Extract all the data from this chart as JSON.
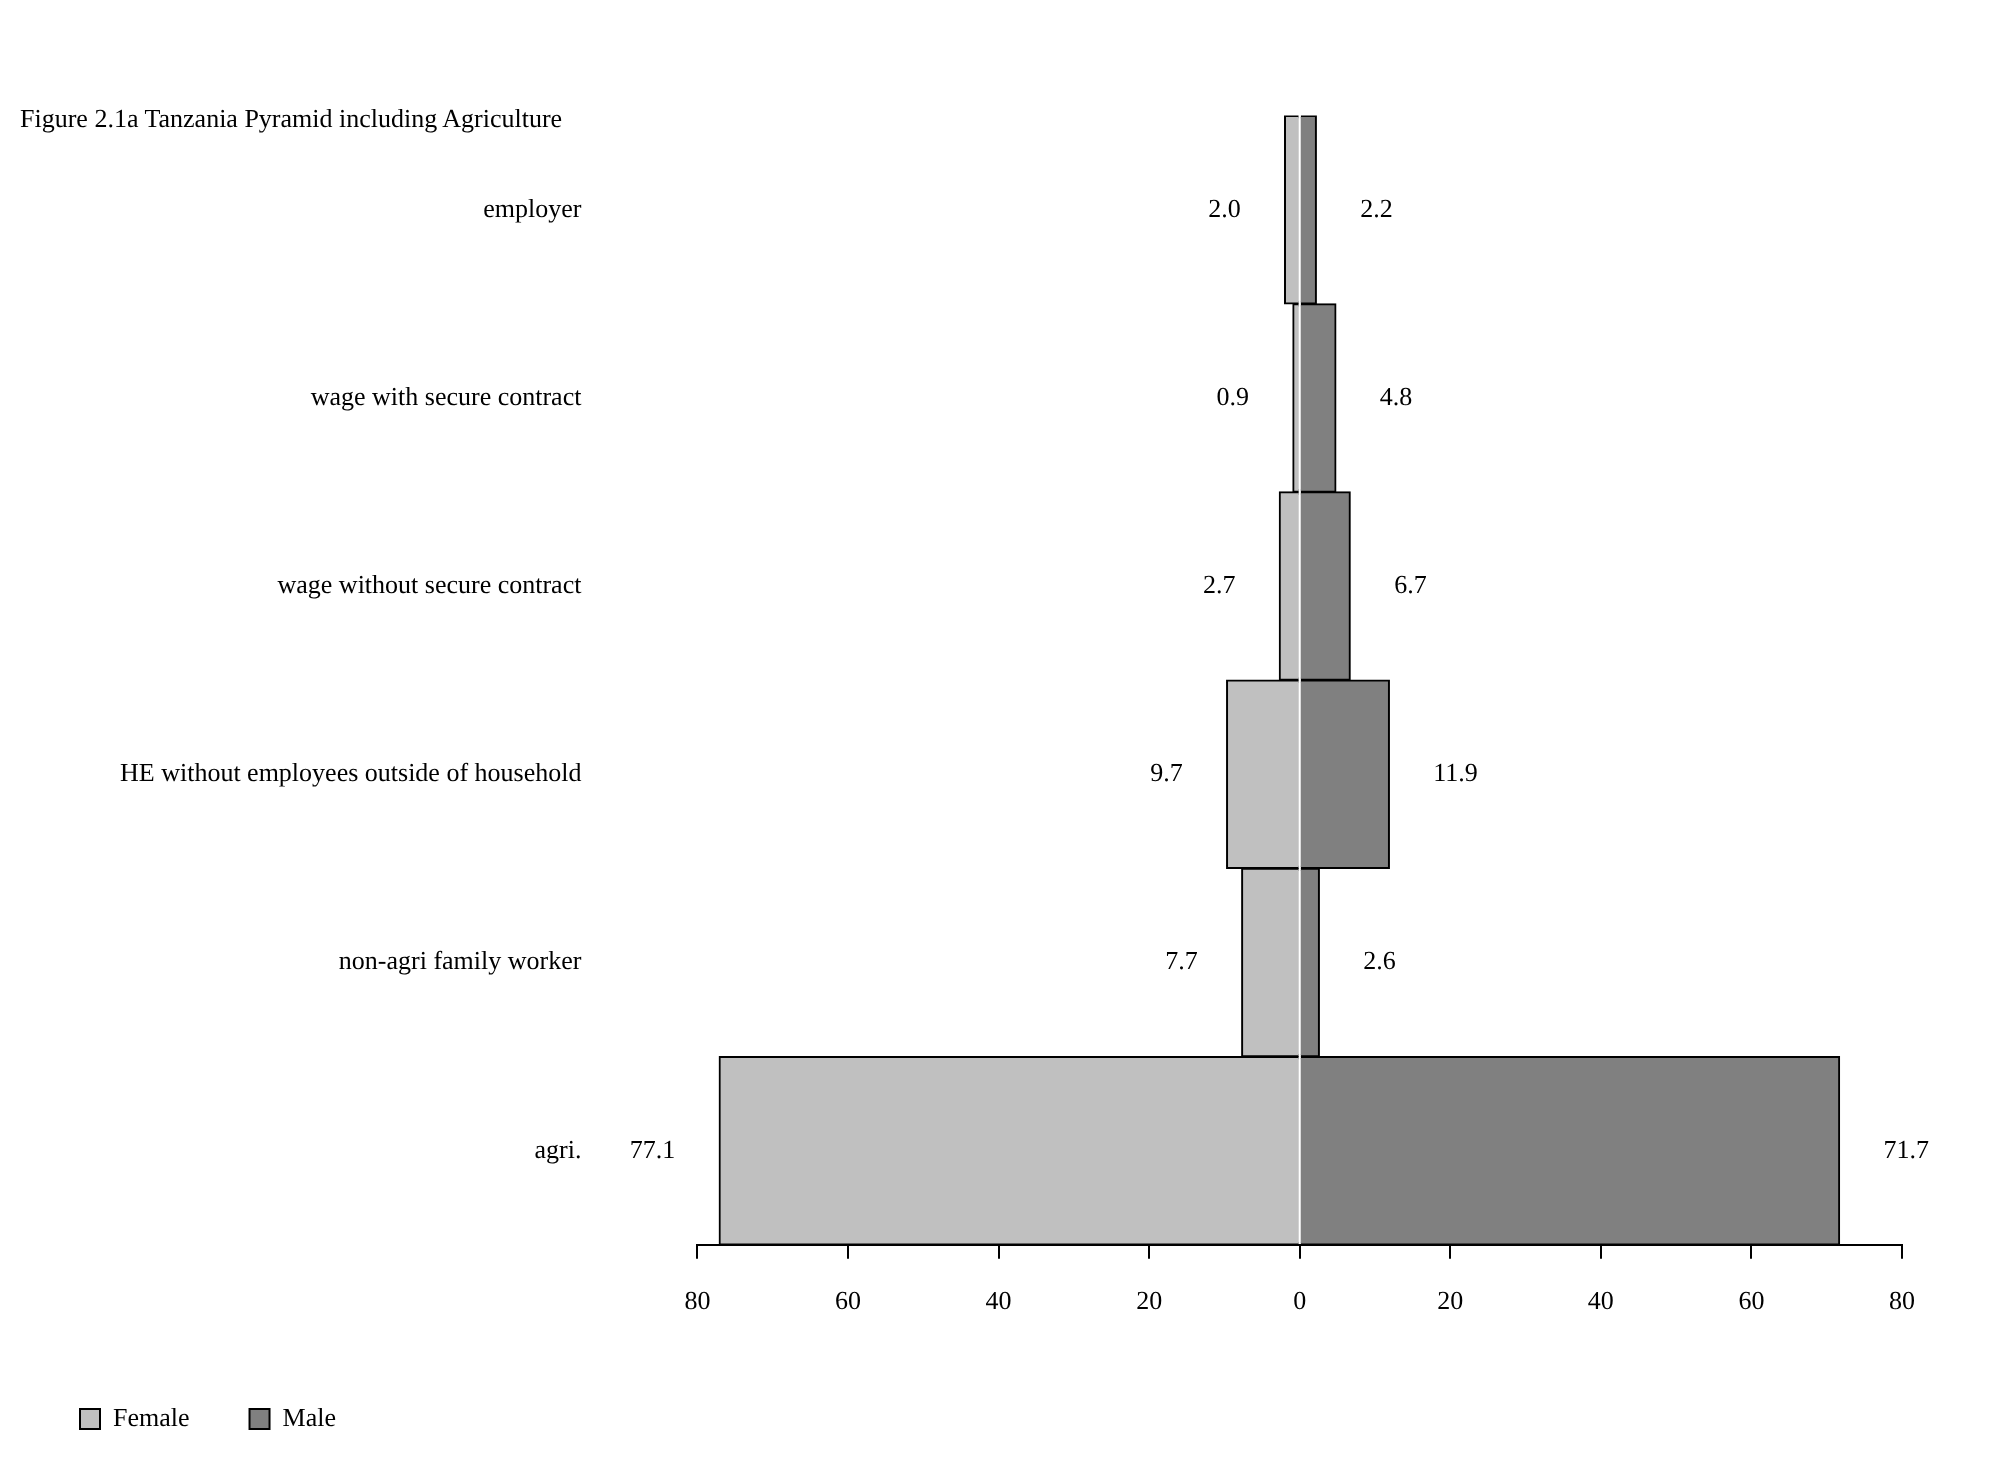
{
  "chart_data": {
    "type": "bar",
    "orientation": "horizontal",
    "title": "Figure 2.1a Tanzania Pyramid including Agriculture",
    "categories": [
      "employer",
      "wage with secure contract",
      "wage without secure contract",
      "HE without employees outside of household",
      "non-agri family worker",
      "agri."
    ],
    "series": [
      {
        "name": "Female",
        "color": "#c0c0c0",
        "values": [
          2.0,
          0.9,
          2.7,
          9.7,
          7.7,
          77.1
        ],
        "base": [
          -2.0,
          -0.9,
          -2.7,
          -9.7,
          -7.7,
          -77.1
        ],
        "value_labels": [
          "2.0",
          "0.9",
          "2.7",
          "9.7",
          "7.7",
          "77.1"
        ]
      },
      {
        "name": "Male",
        "color": "#808080",
        "values": [
          2.2,
          4.8,
          6.7,
          11.9,
          2.6,
          71.7
        ],
        "value_labels": [
          "2.2",
          "4.8",
          "6.7",
          "11.9",
          "2.6",
          "71.7"
        ]
      }
    ],
    "xlim": [
      -80,
      80
    ],
    "xticks": [
      {
        "value": -80,
        "label": "80"
      },
      {
        "value": -60,
        "label": "60"
      },
      {
        "value": -40,
        "label": "40"
      },
      {
        "value": -20,
        "label": "20"
      },
      0,
      20,
      40,
      60,
      80
    ],
    "grid": false,
    "legend": "bottom left"
  }
}
